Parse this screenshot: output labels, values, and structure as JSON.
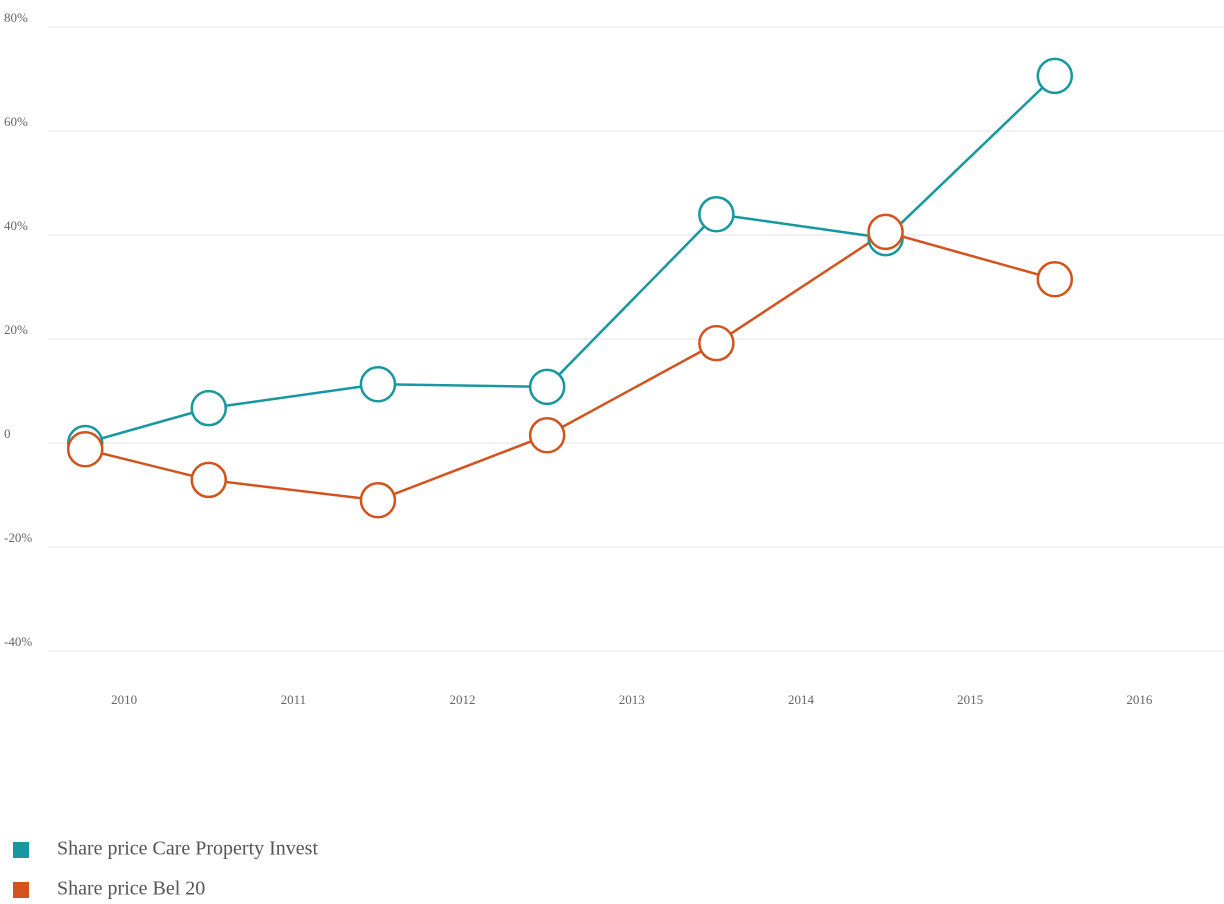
{
  "chart_data": {
    "type": "line",
    "x": [
      2009.77,
      2010.5,
      2011.5,
      2012.5,
      2013.5,
      2014.5,
      2015.5
    ],
    "series": [
      {
        "name": "Share price Care Property Invest",
        "color": "#17979e",
        "values": [
          0,
          6.7,
          11.3,
          10.8,
          44,
          39.4,
          70.6
        ]
      },
      {
        "name": "Share price Bel 20",
        "color": "#d2531d",
        "values": [
          -1.2,
          -7.1,
          -11,
          1.5,
          19.2,
          40.6,
          31.5
        ]
      }
    ],
    "xlim": [
      2009.55,
      2016.5
    ],
    "xticks": [
      2010,
      2011,
      2012,
      2013,
      2014,
      2015,
      2016
    ],
    "ylim": [
      -40,
      80
    ],
    "yticks": [
      {
        "value": -40,
        "label": "-40%"
      },
      {
        "value": -20,
        "label": "-20%"
      },
      0,
      {
        "value": 20,
        "label": "20%"
      },
      {
        "value": 40,
        "label": "40%"
      },
      {
        "value": 60,
        "label": "60%"
      },
      {
        "value": 80,
        "label": "80%"
      }
    ],
    "grid": true,
    "legend": "bottom-left"
  }
}
